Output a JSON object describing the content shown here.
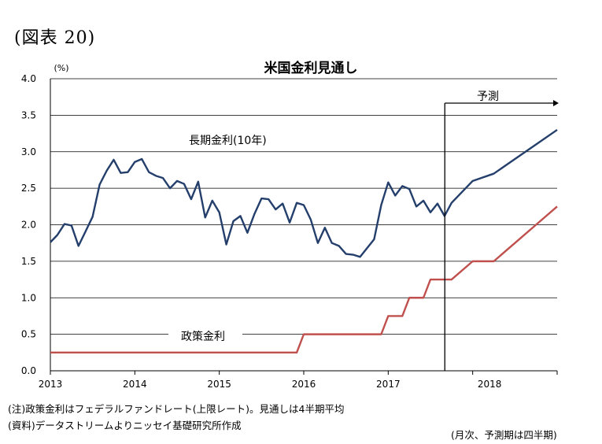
{
  "figure_label": "(図表 20)",
  "notes": {
    "note1": "(注)政策金利はフェデラルファンドレート(上限レート)。見通しは4半期平均",
    "note2": "(資料)データストリームよりニッセイ基礎研究所作成",
    "note3": "(月次、予測期は四半期)"
  },
  "chart_data": {
    "type": "line",
    "title": "米国金利見通し",
    "ylabel": "(%)",
    "ylim": [
      0,
      4
    ],
    "yticks": [
      "4.0",
      "3.5",
      "3.0",
      "2.5",
      "2.0",
      "1.5",
      "1.0",
      "0.5",
      "0.0"
    ],
    "xlim": [
      2013.0,
      2019.0
    ],
    "xticks": [
      {
        "label": "2013",
        "x": 2013.0
      },
      {
        "label": "2014",
        "x": 2014.0
      },
      {
        "label": "2015",
        "x": 2015.0
      },
      {
        "label": "2016",
        "x": 2016.0
      },
      {
        "label": "2017",
        "x": 2017.0
      },
      {
        "label": "2018",
        "x": 2018.2
      }
    ],
    "grid": true,
    "forecast": {
      "start": 2017.67,
      "label": "予測"
    },
    "colors": {
      "long_rate": "#243f6b",
      "policy_rate": "#c0504d",
      "grid": "#000000"
    },
    "series": [
      {
        "name": "長期金利(10年)",
        "color": "#243f6b",
        "points": [
          [
            2013.0,
            1.76
          ],
          [
            2013.083,
            1.86
          ],
          [
            2013.167,
            2.01
          ],
          [
            2013.25,
            1.99
          ],
          [
            2013.333,
            1.71
          ],
          [
            2013.417,
            1.91
          ],
          [
            2013.5,
            2.11
          ],
          [
            2013.583,
            2.55
          ],
          [
            2013.667,
            2.74
          ],
          [
            2013.75,
            2.89
          ],
          [
            2013.833,
            2.71
          ],
          [
            2013.917,
            2.72
          ],
          [
            2014.0,
            2.86
          ],
          [
            2014.083,
            2.9
          ],
          [
            2014.167,
            2.72
          ],
          [
            2014.25,
            2.67
          ],
          [
            2014.333,
            2.64
          ],
          [
            2014.417,
            2.5
          ],
          [
            2014.5,
            2.6
          ],
          [
            2014.583,
            2.56
          ],
          [
            2014.667,
            2.35
          ],
          [
            2014.75,
            2.59
          ],
          [
            2014.833,
            2.1
          ],
          [
            2014.917,
            2.33
          ],
          [
            2015.0,
            2.17
          ],
          [
            2015.083,
            1.73
          ],
          [
            2015.167,
            2.05
          ],
          [
            2015.25,
            2.12
          ],
          [
            2015.333,
            1.89
          ],
          [
            2015.417,
            2.15
          ],
          [
            2015.5,
            2.36
          ],
          [
            2015.583,
            2.35
          ],
          [
            2015.667,
            2.21
          ],
          [
            2015.75,
            2.29
          ],
          [
            2015.833,
            2.03
          ],
          [
            2015.917,
            2.3
          ],
          [
            2016.0,
            2.27
          ],
          [
            2016.083,
            2.07
          ],
          [
            2016.167,
            1.75
          ],
          [
            2016.25,
            1.96
          ],
          [
            2016.333,
            1.75
          ],
          [
            2016.417,
            1.71
          ],
          [
            2016.5,
            1.6
          ],
          [
            2016.583,
            1.59
          ],
          [
            2016.667,
            1.56
          ],
          [
            2016.75,
            1.68
          ],
          [
            2016.833,
            1.8
          ],
          [
            2016.917,
            2.27
          ],
          [
            2017.0,
            2.58
          ],
          [
            2017.083,
            2.4
          ],
          [
            2017.167,
            2.53
          ],
          [
            2017.25,
            2.49
          ],
          [
            2017.333,
            2.25
          ],
          [
            2017.417,
            2.33
          ],
          [
            2017.5,
            2.17
          ],
          [
            2017.583,
            2.29
          ],
          [
            2017.667,
            2.12
          ],
          [
            2017.75,
            2.3
          ],
          [
            2018.0,
            2.6
          ],
          [
            2018.25,
            2.7
          ],
          [
            2018.5,
            2.9
          ],
          [
            2018.75,
            3.1
          ],
          [
            2019.0,
            3.3
          ]
        ]
      },
      {
        "name": "政策金利",
        "color": "#c0504d",
        "points": [
          [
            2013.0,
            0.25
          ],
          [
            2015.917,
            0.25
          ],
          [
            2016.0,
            0.5
          ],
          [
            2016.917,
            0.5
          ],
          [
            2017.0,
            0.75
          ],
          [
            2017.167,
            0.75
          ],
          [
            2017.25,
            1.0
          ],
          [
            2017.417,
            1.0
          ],
          [
            2017.5,
            1.25
          ],
          [
            2017.75,
            1.25
          ],
          [
            2018.0,
            1.5
          ],
          [
            2018.25,
            1.5
          ],
          [
            2018.5,
            1.75
          ],
          [
            2018.75,
            2.0
          ],
          [
            2019.0,
            2.25
          ]
        ]
      }
    ]
  }
}
